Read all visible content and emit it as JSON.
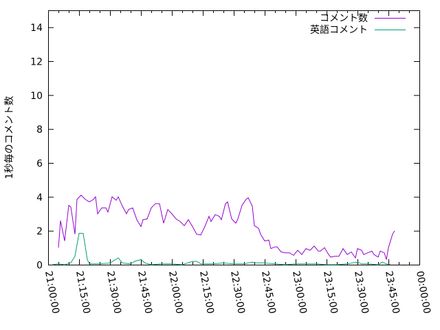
{
  "chart_data": {
    "type": "line",
    "title": "",
    "xlabel": "",
    "ylabel": "1秒毎のコメント数",
    "xlim": [
      "21:00:00",
      "00:00:00"
    ],
    "ylim": [
      0,
      15
    ],
    "x_tick_labels": [
      "21:00:00",
      "21:15:00",
      "21:30:00",
      "21:45:00",
      "22:00:00",
      "22:15:00",
      "22:30:00",
      "22:45:00",
      "23:00:00",
      "23:15:00",
      "23:30:00",
      "23:45:00",
      "00:00:00"
    ],
    "y_tick_labels": [
      "0",
      "2",
      "4",
      "6",
      "8",
      "10",
      "12",
      "14"
    ],
    "grid": false,
    "legend_position": "top-right",
    "series": [
      {
        "name": "コメント数",
        "color": "#9400d3",
        "points": [
          [
            "21:05",
            1.0
          ],
          [
            "21:06",
            2.6
          ],
          [
            "21:08",
            1.4
          ],
          [
            "21:10",
            3.5
          ],
          [
            "21:11",
            3.4
          ],
          [
            "21:13",
            1.8
          ],
          [
            "21:14",
            3.85
          ],
          [
            "21:16",
            4.1
          ],
          [
            "21:18",
            3.85
          ],
          [
            "21:20",
            3.7
          ],
          [
            "21:22",
            3.85
          ],
          [
            "21:23",
            4.0
          ],
          [
            "21:24",
            3.0
          ],
          [
            "21:26",
            3.35
          ],
          [
            "21:28",
            3.35
          ],
          [
            "21:29",
            3.1
          ],
          [
            "21:31",
            4.0
          ],
          [
            "21:33",
            3.8
          ],
          [
            "21:34",
            4.0
          ],
          [
            "21:36",
            3.45
          ],
          [
            "21:38",
            3.0
          ],
          [
            "21:39",
            3.25
          ],
          [
            "21:41",
            3.35
          ],
          [
            "21:43",
            2.65
          ],
          [
            "21:45",
            2.25
          ],
          [
            "21:46",
            2.65
          ],
          [
            "21:48",
            2.7
          ],
          [
            "21:50",
            3.35
          ],
          [
            "21:52",
            3.6
          ],
          [
            "21:54",
            3.6
          ],
          [
            "21:56",
            2.45
          ],
          [
            "21:58",
            3.25
          ],
          [
            "22:00",
            3.0
          ],
          [
            "22:02",
            2.7
          ],
          [
            "22:04",
            2.55
          ],
          [
            "22:06",
            2.3
          ],
          [
            "22:08",
            2.65
          ],
          [
            "22:10",
            2.25
          ],
          [
            "22:12",
            1.8
          ],
          [
            "22:14",
            1.75
          ],
          [
            "22:16",
            2.25
          ],
          [
            "22:18",
            2.85
          ],
          [
            "22:19",
            2.55
          ],
          [
            "22:21",
            2.95
          ],
          [
            "22:23",
            2.85
          ],
          [
            "22:24",
            2.65
          ],
          [
            "22:26",
            3.6
          ],
          [
            "22:27",
            3.7
          ],
          [
            "22:29",
            2.7
          ],
          [
            "22:31",
            2.45
          ],
          [
            "22:32",
            2.7
          ],
          [
            "22:34",
            3.5
          ],
          [
            "22:36",
            3.85
          ],
          [
            "22:37",
            3.95
          ],
          [
            "22:39",
            3.45
          ],
          [
            "22:40",
            2.3
          ],
          [
            "22:42",
            2.15
          ],
          [
            "22:43",
            1.8
          ],
          [
            "22:45",
            1.4
          ],
          [
            "22:47",
            1.45
          ],
          [
            "22:48",
            0.95
          ],
          [
            "22:50",
            1.05
          ],
          [
            "22:51",
            1.05
          ],
          [
            "22:53",
            0.75
          ],
          [
            "22:55",
            0.7
          ],
          [
            "22:57",
            0.7
          ],
          [
            "22:59",
            0.55
          ],
          [
            "23:01",
            0.85
          ],
          [
            "23:03",
            0.6
          ],
          [
            "23:05",
            0.95
          ],
          [
            "23:07",
            0.85
          ],
          [
            "23:09",
            1.1
          ],
          [
            "23:11",
            0.8
          ],
          [
            "23:12",
            0.8
          ],
          [
            "23:14",
            1.0
          ],
          [
            "23:16",
            0.6
          ],
          [
            "23:17",
            0.45
          ],
          [
            "23:19",
            0.5
          ],
          [
            "23:21",
            0.5
          ],
          [
            "23:23",
            0.95
          ],
          [
            "23:25",
            0.6
          ],
          [
            "23:27",
            0.75
          ],
          [
            "23:29",
            0.4
          ],
          [
            "23:30",
            0.95
          ],
          [
            "23:32",
            0.85
          ],
          [
            "23:33",
            0.6
          ],
          [
            "23:35",
            0.7
          ],
          [
            "23:37",
            0.8
          ],
          [
            "23:38",
            0.6
          ],
          [
            "23:40",
            0.45
          ],
          [
            "23:41",
            0.8
          ],
          [
            "23:43",
            0.7
          ],
          [
            "23:44",
            0.3
          ],
          [
            "23:45",
            1.0
          ],
          [
            "23:47",
            1.8
          ],
          [
            "23:48",
            2.0
          ]
        ]
      },
      {
        "name": "英語コメント",
        "color": "#009e73",
        "points": [
          [
            "21:02",
            0
          ],
          [
            "21:05",
            0.05
          ],
          [
            "21:08",
            0
          ],
          [
            "21:11",
            0.1
          ],
          [
            "21:13",
            0.5
          ],
          [
            "21:15",
            1.85
          ],
          [
            "21:17",
            1.85
          ],
          [
            "21:19",
            0.3
          ],
          [
            "21:20",
            0.05
          ],
          [
            "21:25",
            0.05
          ],
          [
            "21:30",
            0.1
          ],
          [
            "21:34",
            0.4
          ],
          [
            "21:36",
            0.1
          ],
          [
            "21:40",
            0.05
          ],
          [
            "21:42",
            0.2
          ],
          [
            "21:45",
            0.3
          ],
          [
            "21:47",
            0.1
          ],
          [
            "21:50",
            0
          ],
          [
            "21:55",
            0.05
          ],
          [
            "22:00",
            0.05
          ],
          [
            "22:05",
            0
          ],
          [
            "22:10",
            0.2
          ],
          [
            "22:12",
            0.2
          ],
          [
            "22:14",
            0.05
          ],
          [
            "22:20",
            0.05
          ],
          [
            "22:25",
            0.1
          ],
          [
            "22:30",
            0.05
          ],
          [
            "22:35",
            0.05
          ],
          [
            "22:39",
            0.15
          ],
          [
            "22:41",
            0.1
          ],
          [
            "22:45",
            0.1
          ],
          [
            "22:50",
            0.05
          ],
          [
            "22:55",
            0
          ],
          [
            "23:00",
            0.05
          ],
          [
            "23:05",
            0.05
          ],
          [
            "23:10",
            0.05
          ],
          [
            "23:15",
            0
          ],
          [
            "23:20",
            0
          ],
          [
            "23:25",
            0.05
          ],
          [
            "23:30",
            0.15
          ],
          [
            "23:32",
            0.05
          ],
          [
            "23:35",
            0.05
          ],
          [
            "23:40",
            0
          ],
          [
            "23:42",
            0.15
          ],
          [
            "23:44",
            0.05
          ],
          [
            "23:46",
            0
          ]
        ]
      }
    ]
  }
}
